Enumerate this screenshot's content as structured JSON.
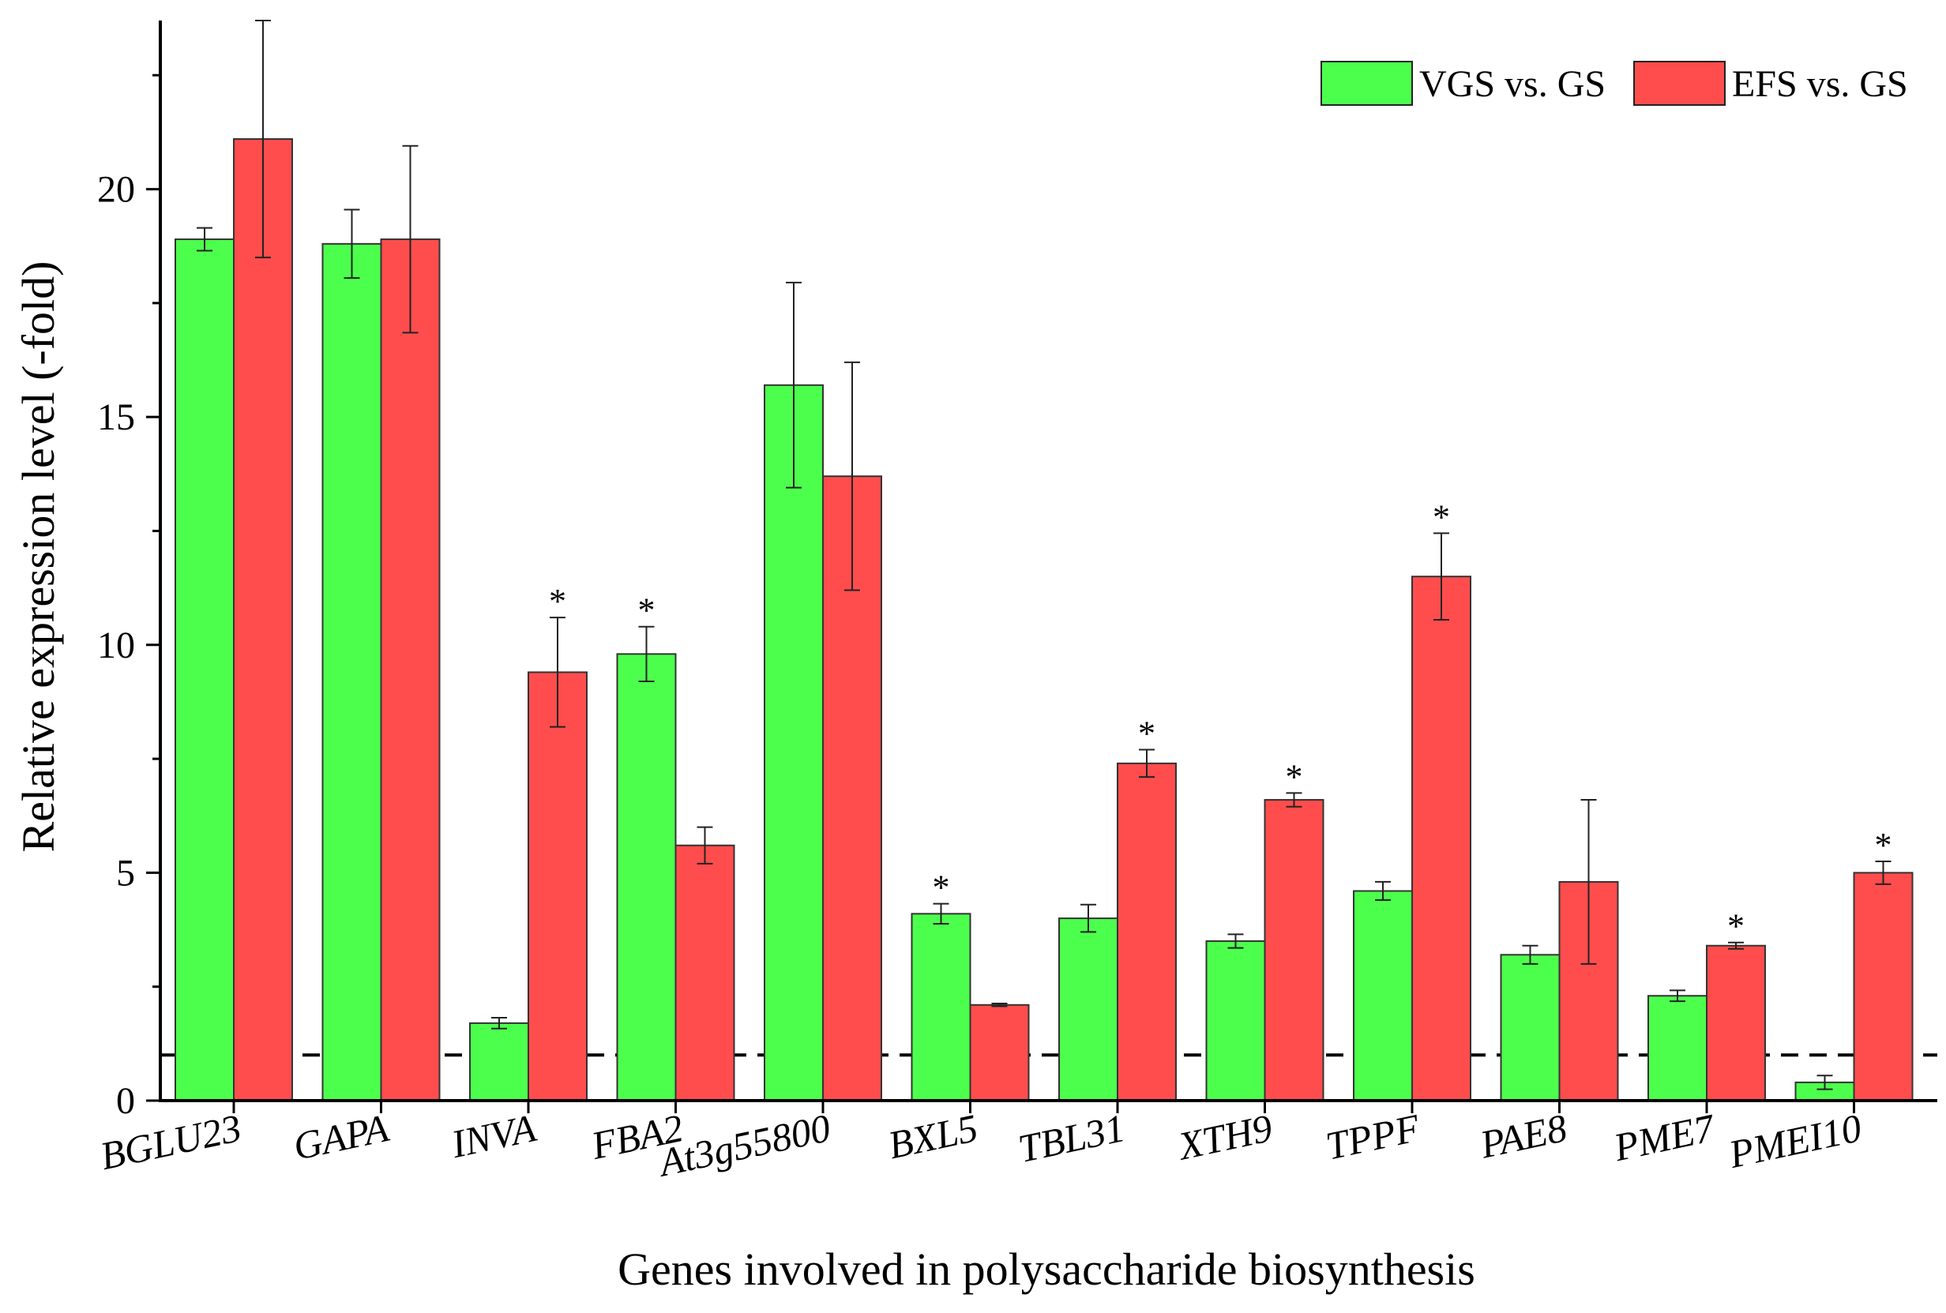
{
  "chart_data": {
    "type": "bar",
    "title": "",
    "xlabel": "Genes involved in polysaccharide biosynthesis",
    "ylabel": "Relative expression level (-fold)",
    "ylim": [
      0,
      23.7
    ],
    "yticks": [
      0,
      5,
      10,
      15,
      20
    ],
    "ytick_labels": [
      "0",
      "5",
      "10",
      "15",
      "20"
    ],
    "reference_line": 1,
    "categories": [
      "BGLU23",
      "GAPA",
      "INVA",
      "FBA2",
      "At3g55800",
      "BXL5",
      "TBL31",
      "XTH9",
      "TPPF",
      "PAE8",
      "PME7",
      "PMEI10"
    ],
    "series": [
      {
        "name": "VGS vs. GS",
        "color": "#4dff4d",
        "values": [
          18.9,
          18.8,
          1.7,
          9.8,
          15.7,
          4.1,
          4.0,
          3.5,
          4.6,
          3.2,
          2.3,
          0.4
        ],
        "errors": [
          0.25,
          0.75,
          0.12,
          0.6,
          2.25,
          0.22,
          0.3,
          0.15,
          0.2,
          0.2,
          0.12,
          0.15
        ],
        "significant": [
          false,
          false,
          false,
          true,
          false,
          true,
          false,
          false,
          false,
          false,
          false,
          false
        ]
      },
      {
        "name": "EFS vs. GS",
        "color": "#ff4d4d",
        "values": [
          21.1,
          18.9,
          9.4,
          5.6,
          13.7,
          2.1,
          7.4,
          6.6,
          11.5,
          4.8,
          3.4,
          5.0
        ],
        "errors": [
          2.6,
          2.05,
          1.2,
          0.4,
          2.5,
          0.03,
          0.3,
          0.15,
          0.95,
          1.8,
          0.07,
          0.25
        ],
        "significant": [
          false,
          false,
          true,
          false,
          false,
          false,
          true,
          true,
          true,
          false,
          true,
          true
        ]
      }
    ],
    "significance_marker": "*",
    "legend_position": "top-right"
  }
}
